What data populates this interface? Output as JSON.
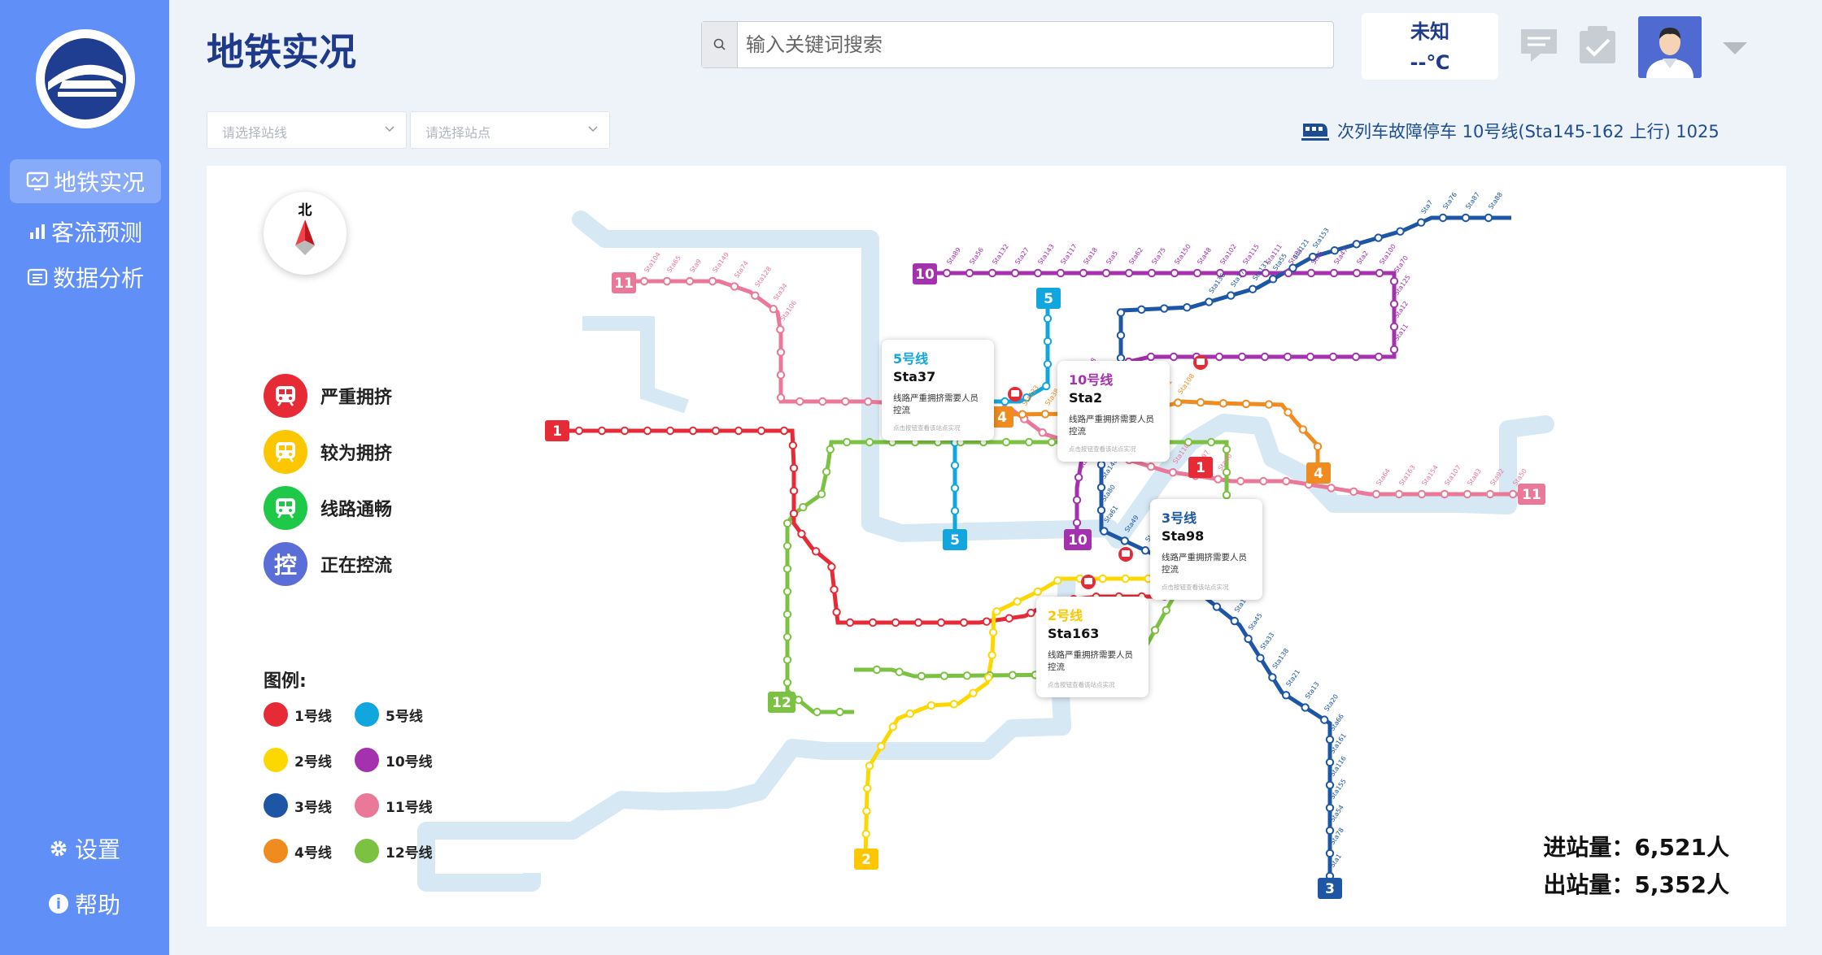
{
  "app": {
    "title": "地铁实况"
  },
  "sidebar": {
    "nav": [
      {
        "label": "地铁实况",
        "icon": "monitor-icon",
        "active": true
      },
      {
        "label": "客流预测",
        "icon": "bar-chart-icon",
        "active": false
      },
      {
        "label": "数据分析",
        "icon": "list-icon",
        "active": false
      }
    ],
    "settings_label": "设置",
    "help_label": "帮助"
  },
  "search": {
    "placeholder": "输入关键词搜索"
  },
  "weather": {
    "condition": "未知",
    "temp": "--℃"
  },
  "filters": {
    "line_placeholder": "请选择站线",
    "station_placeholder": "请选择站点"
  },
  "alert": {
    "text": "次列车故障停车 10号线(Sta145-162 上行) 1025"
  },
  "map": {
    "compass_label": "北",
    "status": [
      {
        "label": "严重拥挤",
        "color": "#e62a36",
        "icon": "train-icon"
      },
      {
        "label": "较为拥挤",
        "color": "#fcc700",
        "icon": "train-icon"
      },
      {
        "label": "线路通畅",
        "color": "#1ec94a",
        "icon": "train-icon"
      },
      {
        "label": "正在控流",
        "color": "#5b6dd6",
        "icon_text": "控"
      }
    ],
    "legend_title": "图例:",
    "legend": [
      {
        "label": "1号线",
        "color": "#e62a36"
      },
      {
        "label": "5号线",
        "color": "#11a6dd"
      },
      {
        "label": "2号线",
        "color": "#fcd800"
      },
      {
        "label": "10号线",
        "color": "#a431ad"
      },
      {
        "label": "3号线",
        "color": "#1d56a4"
      },
      {
        "label": "11号线",
        "color": "#ea7898"
      },
      {
        "label": "4号线",
        "color": "#ef8b1f"
      },
      {
        "label": "12号线",
        "color": "#7cc242"
      }
    ],
    "line_badges": [
      "11",
      "10",
      "5",
      "1",
      "4",
      "4",
      "1",
      "5",
      "10",
      "11",
      "12",
      "2",
      "3"
    ],
    "popups": [
      {
        "line": "5号线",
        "station": "Sta37",
        "desc": "线路严重拥挤需要人员控流",
        "hint": "点击按钮查看该站点实况",
        "color": "#11a6dd"
      },
      {
        "line": "10号线",
        "station": "Sta2",
        "desc": "线路严重拥挤需要人员控流",
        "hint": "点击按钮查看该站点实况",
        "color": "#a431ad"
      },
      {
        "line": "3号线",
        "station": "Sta98",
        "desc": "线路严重拥挤需要人员控流",
        "hint": "点击按钮查看该站点实况",
        "color": "#1d56a4"
      },
      {
        "line": "2号线",
        "station": "Sta163",
        "desc": "线路严重拥挤需要人员控流",
        "hint": "点击按钮查看该站点实况",
        "color": "#fcc700"
      }
    ],
    "station_labels": [
      "Sta104",
      "Sta65",
      "Sta9",
      "Sta149",
      "Sta74",
      "Sta128",
      "Sta34",
      "Sta106",
      "Sta110",
      "Sta97",
      "Sta40",
      "Sta64",
      "Sta163",
      "Sta154",
      "Sta107",
      "Sta83",
      "Sta92",
      "Sta50",
      "Sta89",
      "Sta56",
      "Sta132",
      "Sta27",
      "Sta143",
      "Sta117",
      "Sta18",
      "Sta5",
      "Sta62",
      "Sta75",
      "Sta150",
      "Sta48",
      "Sta102",
      "Sta115",
      "Sta111",
      "Sta31",
      "Sta6",
      "Sta47",
      "Sta2",
      "Sta100",
      "Sta70",
      "Sta125",
      "Sta12",
      "Sta11",
      "Sta158",
      "Sta44",
      "Sta93",
      "Sta42",
      "Sta145",
      "Sta88",
      "Sta87",
      "Sta76",
      "Sta7",
      "Sta153",
      "Sta121",
      "Sta55",
      "Sta131",
      "Sta17",
      "Sta136",
      "Sta137",
      "Sta14",
      "Sta3",
      "Sta148",
      "Sta80",
      "Sta61",
      "Sta49",
      "Sta41",
      "Sta25",
      "Sta146",
      "Sta120",
      "Sta52",
      "Sta164",
      "Sta45",
      "Sta33",
      "Sta138",
      "Sta21",
      "Sta13",
      "Sta20",
      "Sta66",
      "Sta161",
      "Sta116",
      "Sta155",
      "Sta54",
      "Sta78",
      "Sta1",
      "Sta123",
      "Sta38",
      "Sta82",
      "Sta35",
      "Sta4",
      "Sta101",
      "Sta108"
    ],
    "entries": "进站量：6,521人",
    "exits": "出站量：5,352人"
  }
}
